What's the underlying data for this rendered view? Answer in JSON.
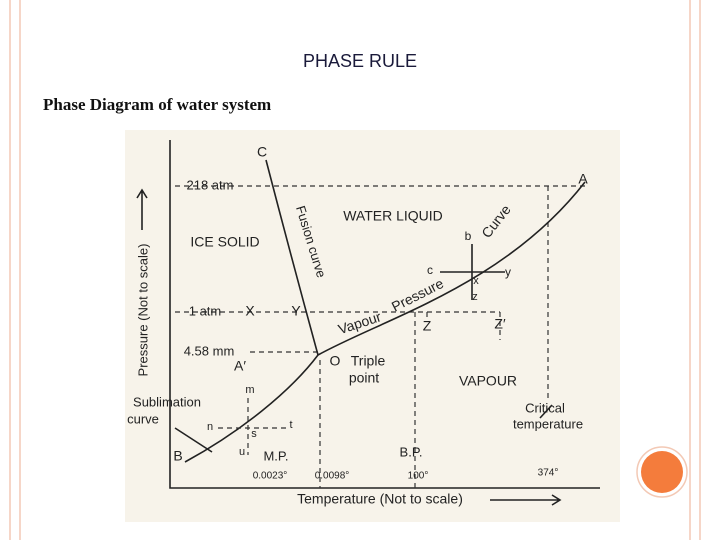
{
  "header": {
    "title": "PHASE RULE",
    "subtitle": "Phase Diagram of water system"
  },
  "diagram": {
    "labels": [
      "C",
      "218 atm",
      "A",
      "WATER LIQUID",
      "Curve",
      "ICE SOLID",
      "Fusion curve",
      "b",
      "c",
      "x",
      "y",
      "z",
      "Pressure",
      "1 atm",
      "X",
      "Y",
      "Vapour",
      "Z",
      "Z′",
      "4.58 mm",
      "A′",
      "O",
      "Triple",
      "point",
      "VAPOUR",
      "m",
      "Sublimation",
      "curve",
      "Critical",
      "temperature",
      "n",
      "t",
      "s",
      "u",
      "B",
      "M.P.",
      "B.P.",
      "0.0023°",
      "0.0098°",
      "100°",
      "374°",
      "Temperature (Not to scale)",
      "Pressure (Not to scale)"
    ]
  }
}
